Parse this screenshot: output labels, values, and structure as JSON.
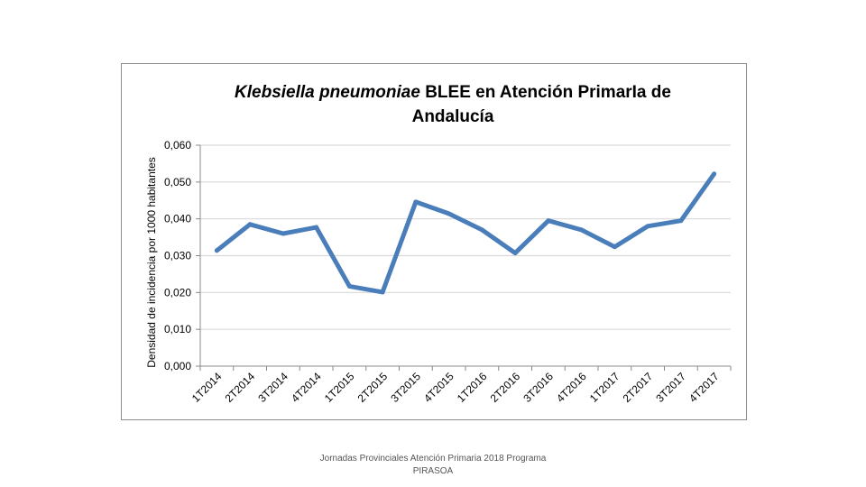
{
  "chart_data": {
    "type": "line",
    "title_italic": "Klebsiella pneumoniae",
    "title_rest": " BLEE en Atención PrimarIa de",
    "title_line2": "Andalucía",
    "ylabel": "Densidad de incidencia por 1000 habitantes",
    "xlabel": "",
    "ylim": [
      0,
      0.06
    ],
    "yticks": [
      0,
      0.01,
      0.02,
      0.03,
      0.04,
      0.05,
      0.06
    ],
    "ytick_labels": [
      "0,000",
      "0,010",
      "0,020",
      "0,030",
      "0,040",
      "0,050",
      "0,060"
    ],
    "grid": true,
    "categories": [
      "1T2014",
      "2T2014",
      "3T2014",
      "4T2014",
      "1T2015",
      "2T2015",
      "3T2015",
      "4T2015",
      "1T2016",
      "2T2016",
      "3T2016",
      "4T2016",
      "1T2017",
      "2T2017",
      "3T2017",
      "4T2017"
    ],
    "series": [
      {
        "name": "Klebsiella pneumoniae BLEE",
        "color": "#4a7ebb",
        "values": [
          0.0314,
          0.0385,
          0.036,
          0.0377,
          0.0217,
          0.0201,
          0.0446,
          0.0414,
          0.037,
          0.0307,
          0.0395,
          0.037,
          0.0324,
          0.038,
          0.0395,
          0.0522
        ]
      }
    ]
  },
  "footer": {
    "line1": "Jornadas Provinciales Atención Primaria 2018  Programa",
    "line2": "PIRASOA"
  },
  "colors": {
    "grid": "#d9d9d9",
    "axis": "#888888"
  }
}
